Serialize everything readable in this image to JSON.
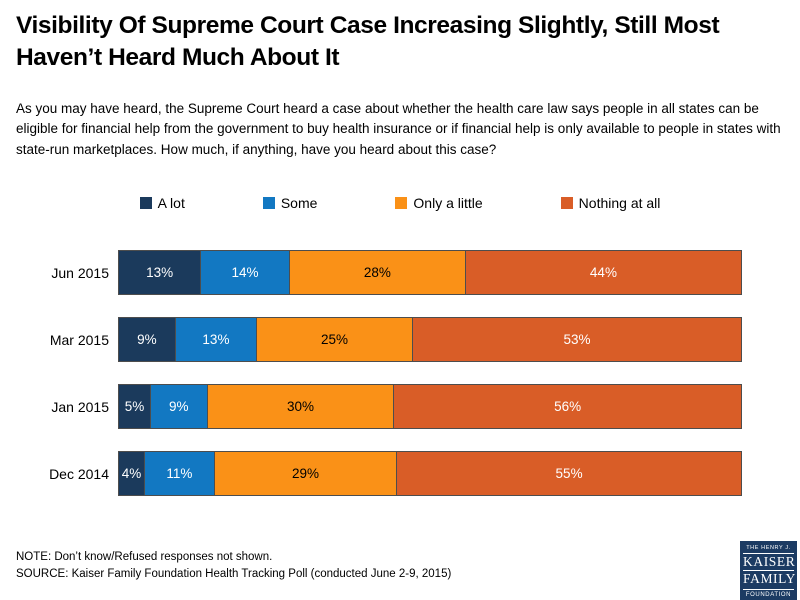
{
  "title": "Visibility Of Supreme Court Case Increasing Slightly, Still Most Haven’t Heard Much About It",
  "question": "As you may have heard, the Supreme Court heard a case about whether the health care law says people in all states can be eligible for financial help from the government to buy health insurance or if financial help is only available to people in states with state-run marketplaces. How much, if anything, have you heard about this case?",
  "footer": {
    "note": "NOTE: Don’t know/Refused responses not shown.",
    "source": "SOURCE: Kaiser Family Foundation Health Tracking Poll (conducted June 2-9, 2015)"
  },
  "logo": {
    "line1": "THE HENRY J.",
    "line2": "KAISER",
    "line3": "FAMILY",
    "line4": "FOUNDATION",
    "background": "#1C3B63"
  },
  "chart_data": {
    "type": "bar",
    "orientation": "horizontal",
    "stacked": true,
    "grid": false,
    "legend_position": "top",
    "value_suffix": "%",
    "xlim": [
      0,
      100
    ],
    "categories": [
      "Jun 2015",
      "Mar 2015",
      "Jan 2015",
      "Dec 2014"
    ],
    "series": [
      {
        "name": "A lot",
        "color": "#1B3A5C",
        "label_color": "#FFFFFF",
        "values": [
          13,
          9,
          5,
          4
        ]
      },
      {
        "name": "Some",
        "color": "#1278C2",
        "label_color": "#FFFFFF",
        "values": [
          14,
          13,
          9,
          11
        ]
      },
      {
        "name": "Only a little",
        "color": "#FA9117",
        "label_color": "#000000",
        "values": [
          28,
          25,
          30,
          29
        ]
      },
      {
        "name": "Nothing at all",
        "color": "#D95D27",
        "label_color": "#FFFFFF",
        "values": [
          44,
          53,
          56,
          55
        ]
      }
    ]
  }
}
